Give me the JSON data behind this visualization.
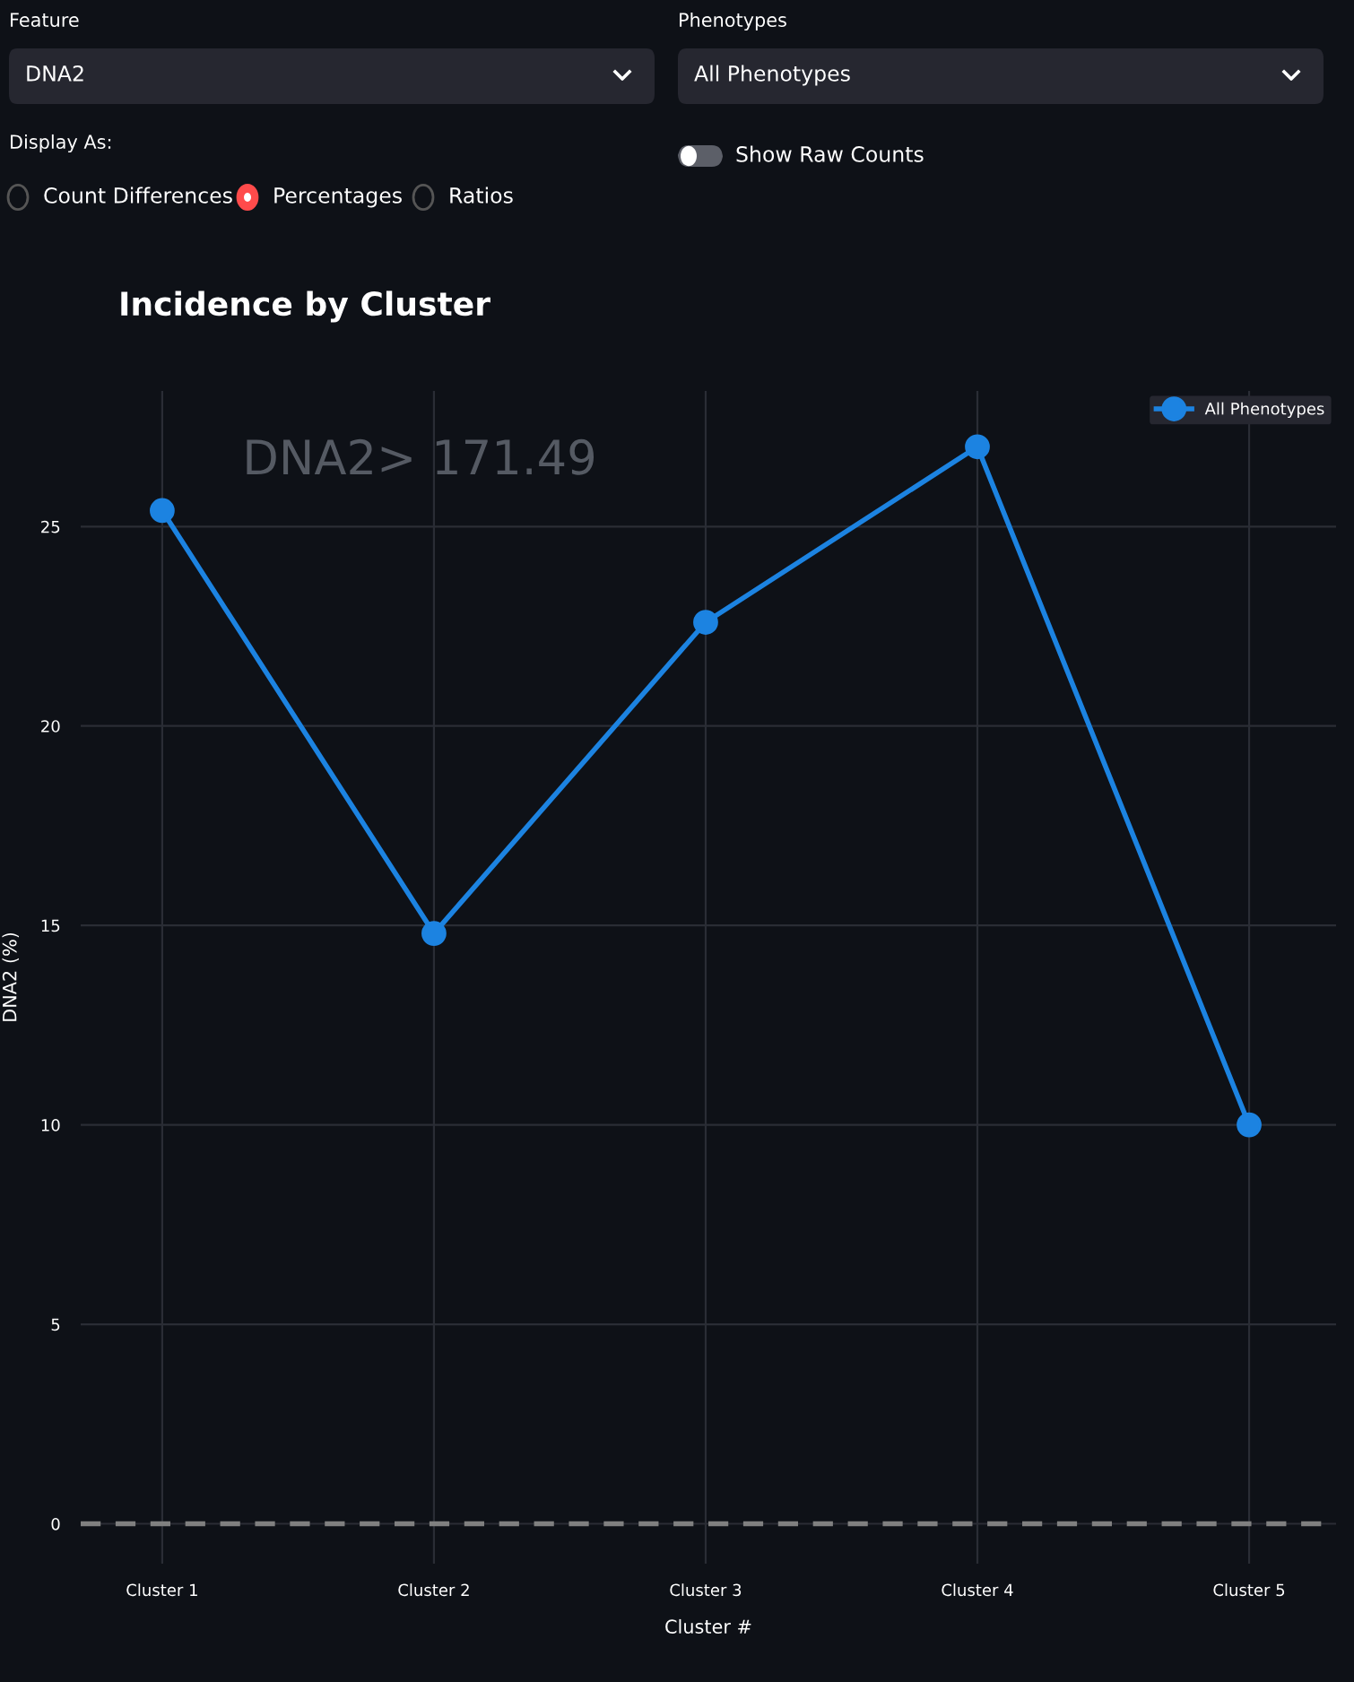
{
  "chart_data": [
    {
      "type": "other",
      "annotations": [
        "Feature",
        "DNA2",
        "Phenotypes",
        "All Phenotypes",
        "Display As:",
        "Count Differences",
        "Percentages",
        "Ratios",
        "Show Raw Counts"
      ]
    },
    {
      "type": "line",
      "title": "Incidence by Cluster",
      "xlabel": "Cluster #",
      "ylabel": "DNA2 (%)",
      "categories": [
        "Cluster 1",
        "Cluster 2",
        "Cluster 3",
        "Cluster 4",
        "Cluster 5"
      ],
      "series": [
        {
          "name": "All Phenotypes",
          "color": "#1c83e1",
          "values": [
            25.4,
            14.8,
            22.6,
            27.0,
            10.0
          ]
        }
      ],
      "ylim": [
        -1,
        28.4
      ],
      "yticks": [
        0,
        5,
        10,
        15,
        20,
        25
      ],
      "grid": true,
      "legend": "top right",
      "marker": "circle",
      "line_style": "solid",
      "ref_lines": [
        {
          "axis": "y",
          "value": 0,
          "color": "#808080",
          "line_style": "dashed"
        }
      ],
      "annotations": [
        "DNA2> 171.49"
      ]
    }
  ]
}
